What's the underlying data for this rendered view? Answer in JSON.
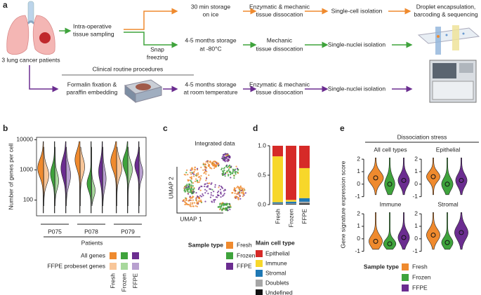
{
  "panel_a": {
    "label": "a",
    "patients": "3 lung cancer patients",
    "sampling": [
      "Intra-operative",
      "tissue sampling"
    ],
    "fresh_storage": [
      "30 min storage",
      "on ice"
    ],
    "fresh_dissociation": [
      "Enzymatic & mechanic",
      "tissue dissocation"
    ],
    "fresh_isolation": "Single-cell isolation",
    "droplet": [
      "Droplet encapsulation,",
      "barcoding & sequencing"
    ],
    "snap": [
      "Snap",
      "freezing"
    ],
    "frozen_storage": [
      "4-5 months storage",
      "at -80°C"
    ],
    "frozen_dissociation": [
      "Mechanic",
      "tissue dissocation"
    ],
    "frozen_isolation": "Single-nuclei isolation",
    "clinical": "Clinical routine procedures",
    "formalin": [
      "Formalin fixation &",
      "paraffin embedding"
    ],
    "ffpe_storage": [
      "4-5 months storage",
      "at room temperature"
    ],
    "ffpe_dissociation": [
      "Enzymatic & mechanic",
      "tissue dissocation"
    ],
    "ffpe_isolation": "Single-nuclei isolation"
  },
  "chart_data": [
    {
      "type": "violin",
      "label": "b",
      "ylabel": "Number of genes per cell",
      "xlabel": "Patients",
      "categories": [
        "P075",
        "P078",
        "P079"
      ],
      "log_scale": true,
      "ylim": [
        30,
        12000
      ],
      "yticks": [
        100,
        1000,
        10000
      ],
      "legend_all": "All genes",
      "legend_probeset": "FFPE probeset genes",
      "series": [
        {
          "name": "Fresh",
          "color": "#ef8a2e",
          "light_color": "#f8c699"
        },
        {
          "name": "Frozen",
          "color": "#3fa33c",
          "light_color": "#a8d89d"
        },
        {
          "name": "FFPE",
          "color": "#6b2d90",
          "light_color": "#b8a0cf"
        }
      ]
    },
    {
      "type": "scatter",
      "label": "c",
      "title": "Integrated data",
      "xlabel": "UMAP 1",
      "ylabel": "UMAP 2",
      "legend_title": "Sample type",
      "series": [
        {
          "name": "Fresh",
          "color": "#ef8a2e"
        },
        {
          "name": "Frozen",
          "color": "#3fa33c"
        },
        {
          "name": "FFPE",
          "color": "#6b2d90"
        }
      ]
    },
    {
      "type": "bar",
      "stacked": true,
      "label": "d",
      "categories": [
        "Fresh",
        "Frozen",
        "FFPE"
      ],
      "ylim": [
        0,
        1
      ],
      "yticks": [
        {
          "value": 0,
          "label": "0.0"
        },
        0.5,
        {
          "value": 1,
          "label": "1.0"
        }
      ],
      "legend_title": "Main cell type",
      "series": [
        {
          "name": "Epithelial",
          "color": "#d62a28",
          "values": [
            0.18,
            0.92,
            0.38
          ]
        },
        {
          "name": "Immune",
          "color": "#f7d72a",
          "values": [
            0.78,
            0.03,
            0.51
          ]
        },
        {
          "name": "Stromal",
          "color": "#1f78b4",
          "values": [
            0.02,
            0.03,
            0.06
          ]
        },
        {
          "name": "Doublets",
          "color": "#a6a6a6",
          "values": [
            0.01,
            0.01,
            0.03
          ]
        },
        {
          "name": "Undefined",
          "color": "#111111",
          "values": [
            0.01,
            0.01,
            0.02
          ]
        }
      ]
    },
    {
      "type": "violin",
      "label": "e",
      "title": "Dissociation stress",
      "ylabel": "Gene signature expression score",
      "panels": [
        "All cell types",
        "Epithelial",
        "Immune",
        "Stromal"
      ],
      "ylim": [
        -1.3,
        2.4
      ],
      "yticks": [
        -1,
        0,
        1,
        2
      ],
      "legend_title": "Sample type",
      "series": [
        {
          "name": "Fresh",
          "color": "#ef8a2e"
        },
        {
          "name": "Frozen",
          "color": "#3fa33c"
        },
        {
          "name": "FFPE",
          "color": "#6b2d90"
        }
      ]
    }
  ]
}
